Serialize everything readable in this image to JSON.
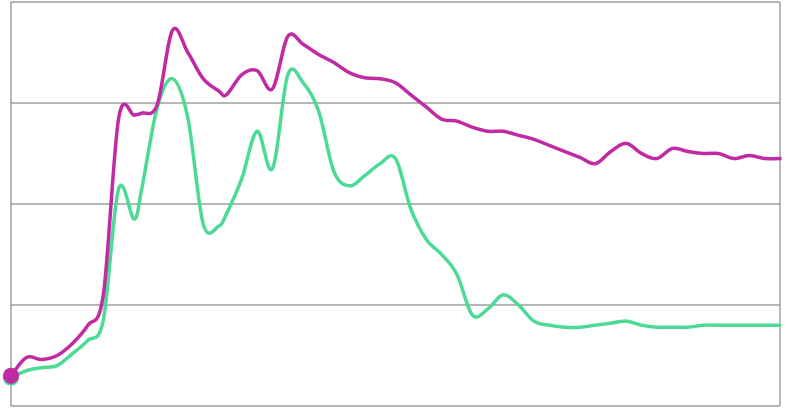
{
  "chart_data": {
    "type": "line",
    "title": "",
    "xlabel": "",
    "ylabel": "",
    "x": [
      0,
      2,
      4,
      6,
      8,
      10,
      12,
      14,
      16,
      17,
      19,
      21,
      23,
      25,
      27,
      28,
      30,
      32,
      34,
      36,
      38,
      40,
      42,
      44,
      46,
      48,
      50,
      52,
      54,
      56,
      58,
      60,
      62,
      64,
      66,
      68,
      70,
      72,
      74,
      76,
      78,
      80,
      82,
      84,
      86,
      88,
      90,
      92,
      94,
      96,
      98,
      100
    ],
    "xlim": [
      0,
      100
    ],
    "ylim": [
      0,
      4
    ],
    "grid": true,
    "series": [
      {
        "color": "#c02aa2",
        "values": [
          0.3,
          0.48,
          0.46,
          0.5,
          0.62,
          0.8,
          1.1,
          2.85,
          2.88,
          2.9,
          2.98,
          3.72,
          3.5,
          3.24,
          3.12,
          3.08,
          3.28,
          3.32,
          3.14,
          3.66,
          3.58,
          3.48,
          3.4,
          3.3,
          3.25,
          3.24,
          3.2,
          3.08,
          2.96,
          2.84,
          2.82,
          2.76,
          2.72,
          2.72,
          2.68,
          2.64,
          2.58,
          2.52,
          2.46,
          2.4,
          2.52,
          2.6,
          2.5,
          2.45,
          2.55,
          2.52,
          2.5,
          2.5,
          2.45,
          2.48,
          2.45,
          2.45
        ]
      },
      {
        "color": "#4cda96",
        "values": [
          0.28,
          0.35,
          0.38,
          0.4,
          0.52,
          0.65,
          0.85,
          2.15,
          1.85,
          2.15,
          2.95,
          3.24,
          2.85,
          1.8,
          1.78,
          1.9,
          2.25,
          2.72,
          2.35,
          3.28,
          3.2,
          2.92,
          2.32,
          2.18,
          2.28,
          2.4,
          2.45,
          1.95,
          1.65,
          1.5,
          1.3,
          0.9,
          0.96,
          1.1,
          1.0,
          0.84,
          0.8,
          0.78,
          0.78,
          0.8,
          0.82,
          0.84,
          0.8,
          0.78,
          0.78,
          0.78,
          0.8,
          0.8,
          0.8,
          0.8,
          0.8,
          0.8
        ]
      }
    ]
  }
}
